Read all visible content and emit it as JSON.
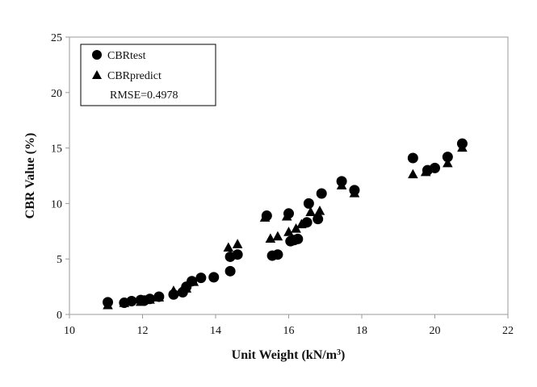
{
  "chart_data": {
    "type": "scatter",
    "title": "",
    "xlabel": "Unit Weight (kN/m",
    "xlabel_sup": "3",
    "xlabel_close": ")",
    "ylabel": "CBR Value (%)",
    "xlim": [
      10,
      22
    ],
    "ylim": [
      0,
      25
    ],
    "xticks": [
      "10",
      "12",
      "14",
      "16",
      "18",
      "20",
      "22"
    ],
    "yticks": [
      "0",
      "5",
      "10",
      "15",
      "20",
      "25"
    ],
    "grid": false,
    "legend_position": "top-left",
    "annotation": "RMSE=0.4978",
    "series": [
      {
        "name": "CBRtest",
        "marker": "circle",
        "color": "#000000",
        "points": [
          [
            11.05,
            1.1
          ],
          [
            11.5,
            1.05
          ],
          [
            11.7,
            1.2
          ],
          [
            11.95,
            1.3
          ],
          [
            12.05,
            1.25
          ],
          [
            12.2,
            1.4
          ],
          [
            12.45,
            1.6
          ],
          [
            12.85,
            1.8
          ],
          [
            13.1,
            2.0
          ],
          [
            13.2,
            2.5
          ],
          [
            13.35,
            3.0
          ],
          [
            13.6,
            3.3
          ],
          [
            13.95,
            3.35
          ],
          [
            14.4,
            3.9
          ],
          [
            14.4,
            5.2
          ],
          [
            14.6,
            5.4
          ],
          [
            15.4,
            8.9
          ],
          [
            15.55,
            5.3
          ],
          [
            15.7,
            5.4
          ],
          [
            16.0,
            9.1
          ],
          [
            16.05,
            6.6
          ],
          [
            16.15,
            6.7
          ],
          [
            16.25,
            6.8
          ],
          [
            16.5,
            8.3
          ],
          [
            16.55,
            10.0
          ],
          [
            16.8,
            8.6
          ],
          [
            16.9,
            10.9
          ],
          [
            17.45,
            12.0
          ],
          [
            17.8,
            11.2
          ],
          [
            19.4,
            14.1
          ],
          [
            19.8,
            13.0
          ],
          [
            20.0,
            13.2
          ],
          [
            20.35,
            14.2
          ],
          [
            20.75,
            15.4
          ]
        ]
      },
      {
        "name": "CBRpredict",
        "marker": "triangle",
        "color": "#000000",
        "points": [
          [
            11.05,
            0.8
          ],
          [
            11.5,
            1.0
          ],
          [
            11.95,
            1.1
          ],
          [
            12.2,
            1.3
          ],
          [
            12.45,
            1.5
          ],
          [
            12.85,
            2.1
          ],
          [
            13.05,
            2.0
          ],
          [
            13.2,
            2.3
          ],
          [
            13.4,
            2.9
          ],
          [
            14.35,
            6.0
          ],
          [
            14.6,
            6.3
          ],
          [
            15.35,
            8.7
          ],
          [
            15.5,
            6.8
          ],
          [
            15.7,
            7.0
          ],
          [
            16.0,
            7.4
          ],
          [
            15.95,
            8.8
          ],
          [
            16.2,
            7.7
          ],
          [
            16.35,
            8.1
          ],
          [
            16.6,
            9.2
          ],
          [
            16.85,
            9.3
          ],
          [
            17.45,
            11.6
          ],
          [
            17.8,
            10.9
          ],
          [
            19.4,
            12.6
          ],
          [
            19.75,
            12.8
          ],
          [
            20.35,
            13.6
          ],
          [
            20.75,
            15.0
          ]
        ]
      }
    ]
  }
}
